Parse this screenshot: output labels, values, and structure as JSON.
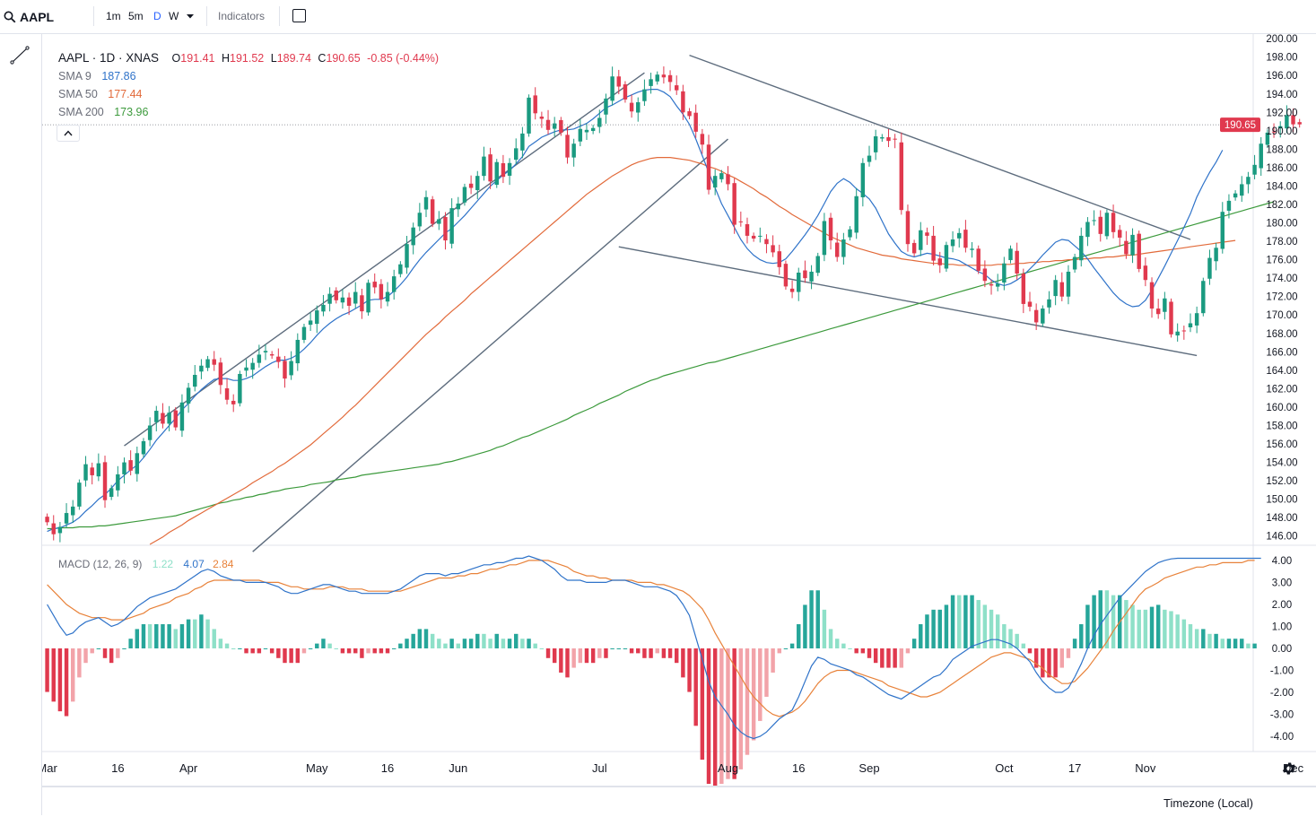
{
  "toolbar": {
    "symbol": "AAPL",
    "timeframes": [
      "1m",
      "5m",
      "D",
      "W"
    ],
    "active_timeframe": "D",
    "indicators_label": "Indicators"
  },
  "legend": {
    "title": "AAPL · 1D · XNAS",
    "open_label": "O",
    "open": "191.41",
    "high_label": "H",
    "high": "191.52",
    "low_label": "L",
    "low": "189.74",
    "close_label": "C",
    "close": "190.65",
    "change": "-0.85 (-0.44%)",
    "sma9_label": "SMA 9",
    "sma9_value": "187.86",
    "sma50_label": "SMA 50",
    "sma50_value": "177.44",
    "sma200_label": "SMA 200",
    "sma200_value": "173.96",
    "macd_label": "MACD (12, 26, 9)",
    "macd_hist": "1.22",
    "macd_line": "4.07",
    "macd_signal": "2.84"
  },
  "price_tag": "190.65",
  "timezone_label": "Timezone (Local)",
  "colors": {
    "up": "#1a9a80",
    "down": "#e0394e",
    "sma9": "#2f73c9",
    "sma50": "#e26a3a",
    "sma200": "#3c9a3c",
    "macd": "#2f73c9",
    "signal": "#e8823a",
    "hist_up_strong": "#26a69a",
    "hist_up_weak": "#8ee0c8",
    "hist_down_strong": "#e0394e",
    "hist_down_weak": "#f2a3a9",
    "trendline": "#5d6c7d"
  },
  "chart_data": {
    "type": "candlestick",
    "symbol": "AAPL",
    "price_axis": [
      "200.00",
      "198.00",
      "196.00",
      "194.00",
      "192.00",
      "190.00",
      "188.00",
      "186.00",
      "184.00",
      "182.00",
      "180.00",
      "178.00",
      "176.00",
      "174.00",
      "172.00",
      "170.00",
      "168.00",
      "166.00",
      "164.00",
      "162.00",
      "160.00",
      "158.00",
      "156.00",
      "154.00",
      "152.00",
      "150.00",
      "148.00",
      "146.00"
    ],
    "price_range": [
      145,
      200.5
    ],
    "macd_axis": [
      "4.00",
      "3.00",
      "2.00",
      "1.00",
      "0.00",
      "-1.00",
      "-2.00",
      "-3.00",
      "-4.00"
    ],
    "macd_range": [
      -4.2,
      4.2
    ],
    "time_labels": [
      "Mar",
      "16",
      "Apr",
      "May",
      "16",
      "Jun",
      "Jul",
      "Aug",
      "16",
      "Sep",
      "Oct",
      "17",
      "Nov",
      "Dec"
    ],
    "time_label_bars": [
      0,
      11,
      22,
      42,
      53,
      64,
      86,
      106,
      117,
      128,
      149,
      160,
      171,
      194
    ],
    "bar_count": 198,
    "visible_bars": 188,
    "closes": [
      147.5,
      146.2,
      147.0,
      148.5,
      149.2,
      151.8,
      153.8,
      152.6,
      153.9,
      149.9,
      151.2,
      152.7,
      154.0,
      153.1,
      155.0,
      156.3,
      158.0,
      159.6,
      158.2,
      159.4,
      157.8,
      160.5,
      162.1,
      163.5,
      164.5,
      165.2,
      164.6,
      162.4,
      160.8,
      160.3,
      163.6,
      164.3,
      164.8,
      165.7,
      166.1,
      165.6,
      164.9,
      163.1,
      165.0,
      167.3,
      168.7,
      169.4,
      170.5,
      171.1,
      172.3,
      171.6,
      171.9,
      171.0,
      172.5,
      170.4,
      173.5,
      173.0,
      171.7,
      172.5,
      174.2,
      175.5,
      177.7,
      179.5,
      181.1,
      182.8,
      179.9,
      180.4,
      178.1,
      181.6,
      182.1,
      183.9,
      183.8,
      185.1,
      187.2,
      184.5,
      186.6,
      185.0,
      186.5,
      188.1,
      189.7,
      193.6,
      191.9,
      191.3,
      190.1,
      190.8,
      189.8,
      187.1,
      188.6,
      190.2,
      190.1,
      190.3,
      191.4,
      193.5,
      195.9,
      194.8,
      193.4,
      192.1,
      193.1,
      194.5,
      195.6,
      196.1,
      195.8,
      195.3,
      194.4,
      192.0,
      191.6,
      189.9,
      188.5,
      183.6,
      185.1,
      185.4,
      184.2,
      179.8,
      180.1,
      178.6,
      178.3,
      178.6,
      177.7,
      176.8,
      175.2,
      173.1,
      172.5,
      174.6,
      174.0,
      174.7,
      176.4,
      180.2,
      178.1,
      176.3,
      178.2,
      179.3,
      182.9,
      186.5,
      187.3,
      189.4,
      189.3,
      188.9,
      189.1,
      181.4,
      177.7,
      176.7,
      179.2,
      178.6,
      175.9,
      175.4,
      177.6,
      178.2,
      178.9,
      177.3,
      177.2,
      174.8,
      173.7,
      173.2,
      173.4,
      175.6,
      177.2,
      174.5,
      171.2,
      170.9,
      169.2,
      170.7,
      171.7,
      173.8,
      172.0,
      174.7,
      176.3,
      178.6,
      180.1,
      180.3,
      178.8,
      181.1,
      179.0,
      178.4,
      176.6,
      178.7,
      175.0,
      173.8,
      170.7,
      170.1,
      171.8,
      167.9,
      168.2,
      168.3,
      169.1,
      170.2,
      173.7,
      176.2,
      177.3,
      181.2,
      182.4,
      183.2,
      184.2,
      185.0,
      186.3,
      188.6,
      189.8,
      189.9,
      190.5,
      191.7,
      190.7,
      190.7
    ],
    "sma9": [
      146.5,
      146.8,
      146.9,
      147.2,
      147.5,
      148.0,
      148.7,
      149.3,
      150.0,
      150.5,
      151.2,
      152.0,
      152.6,
      153.2,
      153.7,
      154.5,
      155.4,
      156.4,
      157.2,
      158.0,
      158.8,
      159.7,
      160.4,
      161.2,
      161.9,
      162.5,
      163.0,
      163.1,
      163.1,
      162.9,
      162.9,
      163.1,
      163.4,
      163.9,
      164.4,
      164.8,
      165.1,
      165.1,
      165.3,
      165.7,
      166.3,
      167.0,
      167.8,
      168.5,
      169.1,
      169.6,
      170.0,
      170.3,
      170.7,
      171.1,
      171.6,
      171.7,
      171.7,
      172.0,
      172.6,
      173.3,
      174.1,
      175.1,
      176.0,
      176.8,
      177.5,
      178.2,
      178.9,
      179.4,
      180.1,
      180.8,
      181.6,
      182.4,
      183.2,
      184.0,
      184.6,
      185.2,
      185.7,
      186.4,
      187.2,
      188.3,
      188.8,
      189.3,
      189.6,
      189.9,
      190.1,
      190.1,
      190.2,
      190.5,
      190.8,
      191.3,
      191.9,
      192.5,
      192.8,
      193.2,
      193.6,
      193.9,
      194.2,
      194.4,
      194.5,
      194.5,
      194.2,
      193.7,
      192.7,
      191.8,
      190.7,
      189.1,
      187.3,
      185.5,
      183.8,
      182.1,
      180.8,
      179.5,
      178.2,
      177.2,
      176.5,
      176.0,
      175.7,
      175.6,
      175.7,
      176.1,
      176.9,
      177.8,
      178.7,
      179.7,
      180.8,
      182.1,
      183.4,
      184.3,
      184.8,
      184.4,
      183.7,
      183.2,
      182.6,
      181.6,
      180.2,
      178.8,
      177.8,
      176.9,
      176.5,
      176.3,
      176.5,
      176.7,
      176.6,
      176.4,
      176.2,
      176.1,
      175.9,
      175.5,
      175.1,
      174.7,
      174.4,
      173.8,
      173.4,
      173.2,
      173.4,
      173.8,
      174.3,
      175.0,
      175.7,
      176.5,
      177.2,
      177.9,
      178.2,
      178.1,
      177.5,
      176.9,
      176.1,
      175.1,
      174.2,
      173.3,
      172.4,
      171.7,
      171.2,
      170.9,
      171.0,
      171.6,
      172.7,
      174.0,
      175.3,
      176.7,
      178.1,
      179.5,
      181.0,
      182.8,
      184.2,
      185.5,
      186.6,
      187.9
    ],
    "sma50": [
      138.0,
      138.4,
      138.8,
      139.3,
      139.7,
      140.2,
      140.6,
      141.1,
      141.5,
      142.0,
      142.4,
      142.9,
      143.3,
      143.8,
      144.2,
      144.6,
      145.1,
      145.5,
      145.9,
      146.4,
      146.8,
      147.2,
      147.7,
      148.1,
      148.5,
      148.9,
      149.3,
      149.7,
      150.1,
      150.5,
      150.9,
      151.3,
      151.8,
      152.2,
      152.6,
      153.0,
      153.5,
      153.9,
      154.4,
      154.9,
      155.4,
      155.9,
      156.5,
      157.1,
      157.7,
      158.3,
      158.9,
      159.6,
      160.2,
      160.9,
      161.6,
      162.3,
      163.0,
      163.7,
      164.4,
      165.1,
      165.8,
      166.5,
      167.2,
      167.9,
      168.5,
      169.1,
      169.8,
      170.4,
      171.0,
      171.6,
      172.3,
      172.9,
      173.5,
      174.1,
      174.7,
      175.3,
      175.9,
      176.5,
      177.1,
      177.7,
      178.3,
      178.9,
      179.5,
      180.1,
      180.7,
      181.3,
      181.9,
      182.5,
      183.1,
      183.6,
      184.1,
      184.6,
      185.1,
      185.5,
      185.9,
      186.3,
      186.6,
      186.8,
      187.0,
      187.1,
      187.1,
      187.1,
      187.0,
      186.9,
      186.8,
      186.6,
      186.4,
      186.1,
      185.9,
      185.6,
      185.2,
      184.9,
      184.5,
      184.1,
      183.7,
      183.2,
      182.8,
      182.3,
      181.8,
      181.4,
      180.9,
      180.5,
      180.1,
      179.7,
      179.3,
      178.9,
      178.5,
      178.2,
      177.9,
      177.6,
      177.3,
      177.1,
      176.9,
      176.7,
      176.5,
      176.4,
      176.3,
      176.1,
      176.0,
      175.9,
      175.8,
      175.7,
      175.6,
      175.6,
      175.5,
      175.5,
      175.4,
      175.4,
      175.4,
      175.4,
      175.4,
      175.4,
      175.5,
      175.5,
      175.5,
      175.6,
      175.6,
      175.7,
      175.7,
      175.8,
      175.8,
      175.9,
      175.9,
      176.0,
      176.0,
      176.1,
      176.1,
      176.2,
      176.2,
      176.3,
      176.3,
      176.4,
      176.5,
      176.5,
      176.6,
      176.7,
      176.8,
      176.9,
      177.0,
      177.1,
      177.2,
      177.3,
      177.4,
      177.5,
      177.6,
      177.7,
      177.8,
      177.9,
      178.0,
      178.1
    ],
    "sma200": [
      146.8,
      146.8,
      146.9,
      146.9,
      146.9,
      147.0,
      147.0,
      147.0,
      147.1,
      147.1,
      147.2,
      147.3,
      147.4,
      147.5,
      147.6,
      147.7,
      147.8,
      147.9,
      148.0,
      148.1,
      148.2,
      148.4,
      148.6,
      148.8,
      149.0,
      149.2,
      149.4,
      149.6,
      149.7,
      149.9,
      150.0,
      150.2,
      150.3,
      150.5,
      150.6,
      150.8,
      150.9,
      151.1,
      151.2,
      151.3,
      151.4,
      151.6,
      151.7,
      151.8,
      151.9,
      152.1,
      152.2,
      152.3,
      152.4,
      152.6,
      152.7,
      152.8,
      152.9,
      153.0,
      153.1,
      153.2,
      153.3,
      153.4,
      153.5,
      153.6,
      153.7,
      153.8,
      154.0,
      154.1,
      154.3,
      154.5,
      154.7,
      154.9,
      155.1,
      155.3,
      155.6,
      155.8,
      156.1,
      156.4,
      156.7,
      156.9,
      157.2,
      157.5,
      157.8,
      158.1,
      158.4,
      158.7,
      159.1,
      159.4,
      159.7,
      160.0,
      160.4,
      160.7,
      161.0,
      161.3,
      161.7,
      162.0,
      162.3,
      162.6,
      162.9,
      163.1,
      163.4,
      163.6,
      163.8,
      164.0,
      164.2,
      164.4,
      164.6,
      164.8,
      164.9,
      165.1,
      165.3,
      165.5,
      165.7,
      165.9,
      166.1,
      166.3,
      166.5,
      166.7,
      166.9,
      167.1,
      167.3,
      167.5,
      167.7,
      167.9,
      168.1,
      168.3,
      168.5,
      168.7,
      168.9,
      169.1,
      169.3,
      169.5,
      169.7,
      169.9,
      170.1,
      170.3,
      170.5,
      170.7,
      170.9,
      171.1,
      171.3,
      171.5,
      171.7,
      171.9,
      172.1,
      172.3,
      172.5,
      172.7,
      172.9,
      173.1,
      173.3,
      173.5,
      173.7,
      173.9,
      174.1,
      174.3,
      174.5,
      174.7,
      174.9,
      175.1,
      175.3,
      175.5,
      175.7,
      175.9,
      176.1,
      176.3,
      176.5,
      176.7,
      176.9,
      177.1,
      177.3,
      177.5,
      177.7,
      177.9,
      178.1,
      178.3,
      178.5,
      178.7,
      178.9,
      179.1,
      179.3,
      179.5,
      179.7,
      179.9,
      180.1,
      180.3,
      180.5,
      180.7,
      180.9,
      181.1,
      181.3,
      181.5,
      181.7,
      181.9,
      182.1,
      182.3
    ],
    "macd": [
      2.0,
      1.5,
      1.0,
      0.6,
      0.7,
      1.0,
      1.2,
      1.3,
      1.4,
      1.2,
      1.0,
      1.1,
      1.3,
      1.6,
      1.9,
      2.1,
      2.3,
      2.4,
      2.5,
      2.6,
      2.7,
      2.9,
      3.1,
      3.3,
      3.5,
      3.6,
      3.5,
      3.3,
      3.2,
      3.1,
      3.1,
      3.0,
      3.0,
      3.0,
      3.0,
      2.9,
      2.8,
      2.6,
      2.5,
      2.5,
      2.6,
      2.7,
      2.8,
      2.9,
      2.9,
      2.8,
      2.7,
      2.6,
      2.6,
      2.5,
      2.5,
      2.5,
      2.5,
      2.5,
      2.6,
      2.7,
      2.9,
      3.1,
      3.3,
      3.4,
      3.4,
      3.4,
      3.3,
      3.4,
      3.4,
      3.5,
      3.6,
      3.7,
      3.8,
      3.8,
      3.9,
      3.9,
      4.0,
      4.1,
      4.1,
      4.2,
      4.1,
      4.0,
      3.8,
      3.6,
      3.3,
      3.1,
      3.1,
      3.1,
      3.0,
      3.0,
      3.0,
      3.0,
      3.1,
      3.1,
      3.1,
      3.0,
      2.9,
      2.8,
      2.8,
      2.8,
      2.7,
      2.6,
      2.4,
      2.0,
      1.5,
      0.5,
      -0.5,
      -1.5,
      -2.2,
      -2.6,
      -3.0,
      -3.5,
      -3.8,
      -4.0,
      -4.1,
      -4.0,
      -3.8,
      -3.5,
      -3.2,
      -3.0,
      -2.8,
      -2.2,
      -1.5,
      -0.8,
      -0.4,
      -0.5,
      -0.7,
      -0.8,
      -0.9,
      -1.0,
      -1.2,
      -1.3,
      -1.5,
      -1.7,
      -1.9,
      -2.1,
      -2.2,
      -2.3,
      -2.1,
      -1.9,
      -1.7,
      -1.5,
      -1.3,
      -1.2,
      -0.9,
      -0.5,
      -0.3,
      -0.1,
      0.1,
      0.2,
      0.3,
      0.4,
      0.4,
      0.3,
      0.2,
      0.0,
      -0.3,
      -0.6,
      -1.1,
      -1.5,
      -1.8,
      -2.0,
      -2.0,
      -1.8,
      -1.3,
      -0.7,
      0.0,
      0.6,
      1.1,
      1.5,
      1.9,
      2.3,
      2.6,
      2.9,
      3.2,
      3.5,
      3.7,
      3.9,
      4.0,
      4.07,
      4.1,
      4.1,
      4.1,
      4.1,
      4.1,
      4.1,
      4.1,
      4.1,
      4.1,
      4.1,
      4.1,
      4.1,
      4.1,
      4.1
    ],
    "signal": [
      2.9,
      2.6,
      2.3,
      2.0,
      1.8,
      1.6,
      1.5,
      1.4,
      1.4,
      1.4,
      1.3,
      1.3,
      1.3,
      1.4,
      1.5,
      1.6,
      1.8,
      1.9,
      2.0,
      2.1,
      2.3,
      2.4,
      2.5,
      2.7,
      2.8,
      3.0,
      3.1,
      3.1,
      3.1,
      3.1,
      3.1,
      3.1,
      3.1,
      3.1,
      3.0,
      3.0,
      3.0,
      2.9,
      2.8,
      2.8,
      2.7,
      2.7,
      2.7,
      2.7,
      2.8,
      2.8,
      2.8,
      2.7,
      2.7,
      2.7,
      2.6,
      2.6,
      2.6,
      2.6,
      2.6,
      2.6,
      2.7,
      2.8,
      2.9,
      3.0,
      3.1,
      3.2,
      3.2,
      3.2,
      3.3,
      3.3,
      3.4,
      3.4,
      3.5,
      3.6,
      3.6,
      3.7,
      3.8,
      3.8,
      3.9,
      4.0,
      4.0,
      4.0,
      4.0,
      3.9,
      3.8,
      3.7,
      3.5,
      3.4,
      3.3,
      3.3,
      3.2,
      3.2,
      3.1,
      3.1,
      3.1,
      3.1,
      3.0,
      3.0,
      3.0,
      2.9,
      2.9,
      2.8,
      2.7,
      2.6,
      2.4,
      2.1,
      1.8,
      1.3,
      0.7,
      0.2,
      -0.3,
      -0.8,
      -1.3,
      -1.8,
      -2.2,
      -2.5,
      -2.8,
      -3.0,
      -3.1,
      -3.0,
      -2.9,
      -2.7,
      -2.4,
      -2.0,
      -1.6,
      -1.3,
      -1.1,
      -1.0,
      -1.0,
      -1.0,
      -1.1,
      -1.2,
      -1.3,
      -1.4,
      -1.5,
      -1.7,
      -1.8,
      -1.9,
      -2.0,
      -2.1,
      -2.2,
      -2.2,
      -2.1,
      -2.0,
      -1.8,
      -1.6,
      -1.4,
      -1.2,
      -1.0,
      -0.8,
      -0.6,
      -0.4,
      -0.3,
      -0.2,
      -0.2,
      -0.3,
      -0.4,
      -0.5,
      -0.7,
      -0.9,
      -1.2,
      -1.4,
      -1.6,
      -1.6,
      -1.5,
      -1.2,
      -0.9,
      -0.5,
      -0.1,
      0.3,
      0.8,
      1.2,
      1.6,
      2.0,
      2.4,
      2.7,
      2.84,
      3.0,
      3.2,
      3.3,
      3.4,
      3.5,
      3.6,
      3.7,
      3.7,
      3.8,
      3.8,
      3.9,
      3.9,
      3.9,
      3.9,
      4.0,
      4.0
    ]
  }
}
